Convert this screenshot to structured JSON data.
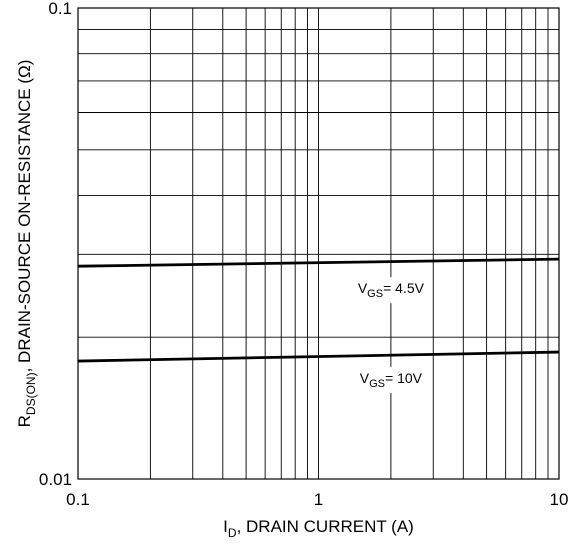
{
  "chart_data": {
    "type": "line",
    "xlabel": {
      "main": "I",
      "sub": "D",
      "rest": ", DRAIN CURRENT (A)"
    },
    "ylabel": {
      "main": "R",
      "sub": "DS(ON)",
      "rest": ", DRAIN-SOURCE ON-RESISTANCE  (Ω)"
    },
    "x_scale": "log",
    "y_scale": "log",
    "xlim": [
      0.1,
      10
    ],
    "ylim": [
      0.01,
      0.1
    ],
    "x_ticks": [
      {
        "value": 0.1,
        "label": "0.1"
      },
      {
        "value": 1,
        "label": "1"
      },
      {
        "value": 10,
        "label": "10"
      }
    ],
    "y_ticks": [
      {
        "value": 0.1,
        "label": "0.1"
      },
      {
        "value": 0.01,
        "label": "0.01"
      }
    ],
    "grid": true,
    "series": [
      {
        "name": "VGS = 4.5V",
        "annotation": {
          "main": "V",
          "sub": "GS",
          "rest": "= 4.5V",
          "x": 2,
          "y": 0.0248
        },
        "x": [
          0.1,
          10
        ],
        "y": [
          0.0283,
          0.0293
        ]
      },
      {
        "name": "VGS = 10V",
        "annotation": {
          "main": "V",
          "sub": "GS",
          "rest": "= 10V",
          "x": 2,
          "y": 0.016
        },
        "x": [
          0.1,
          10
        ],
        "y": [
          0.0178,
          0.0186
        ]
      }
    ]
  }
}
